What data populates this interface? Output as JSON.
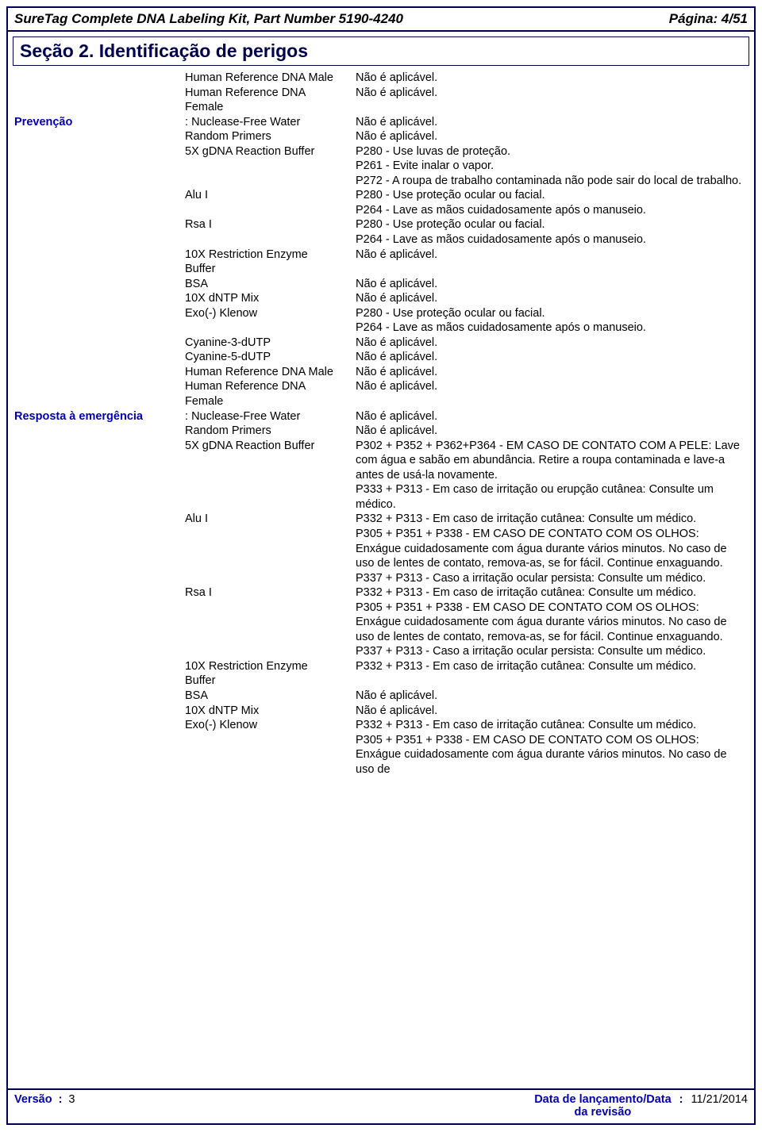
{
  "header": {
    "title_left": "SureTag Complete DNA Labeling Kit, Part Number 5190-4240",
    "title_right": "Página: 4/51"
  },
  "section_title": "Seção 2. Identificação de perigos",
  "labels": {
    "prevention": "Prevenção",
    "emergency": "Resposta à emergência"
  },
  "strings": {
    "na": "Não é aplicável.",
    "colon": ":"
  },
  "reagents": {
    "hrm": "Human Reference DNA Male",
    "hrf": "Human Reference DNA\nFemale",
    "nfw": "Nuclease-Free Water",
    "rp": "Random Primers",
    "gdna": "5X gDNA Reaction Buffer",
    "alu": "Alu I",
    "rsa": "Rsa I",
    "reb": "10X Restriction Enzyme\nBuffer",
    "bsa": "BSA",
    "dntp": "10X dNTP Mix",
    "exo": "Exo(-) Klenow",
    "cy3": "Cyanine-3-dUTP",
    "cy5": "Cyanine-5-dUTP"
  },
  "hazard": {
    "gdna_prev": "P280 - Use luvas de proteção.\nP261 - Evite inalar o vapor.\nP272 - A roupa de trabalho contaminada não pode sair do local de trabalho.",
    "eye_wash": "P280 - Use proteção ocular ou facial.\nP264 - Lave as mãos cuidadosamente após o manuseio.",
    "gdna_resp": "P302 + P352 + P362+P364 - EM CASO DE CONTATO COM A PELE: Lave com água e sabão em abundância. Retire a roupa contaminada e lave-a antes de usá-la novamente.\nP333 + P313 - Em caso de irritação ou erupção cutânea: Consulte um médico.",
    "resp_full": "P332 + P313 - Em caso de irritação cutânea: Consulte um médico.\nP305 + P351 + P338 - EM CASO DE CONTATO COM OS OLHOS: Enxágue cuidadosamente com água durante vários minutos. No caso de uso de lentes de contato, remova-as, se for fácil. Continue enxaguando.\nP337 + P313 - Caso a irritação ocular persista: Consulte um médico.",
    "reb_resp": "P332 + P313 - Em caso de irritação cutânea: Consulte um médico.",
    "exo_resp": "P332 + P313 - Em caso de irritação cutânea: Consulte um médico.\nP305 + P351 + P338 - EM CASO DE CONTATO COM OS OLHOS: Enxágue cuidadosamente com água durante vários minutos. No caso de uso de"
  },
  "footer": {
    "version_label": "Versão",
    "version_value": "3",
    "date_label": "Data de lançamento/Data\nda revisão",
    "date_value": "11/21/2014"
  }
}
